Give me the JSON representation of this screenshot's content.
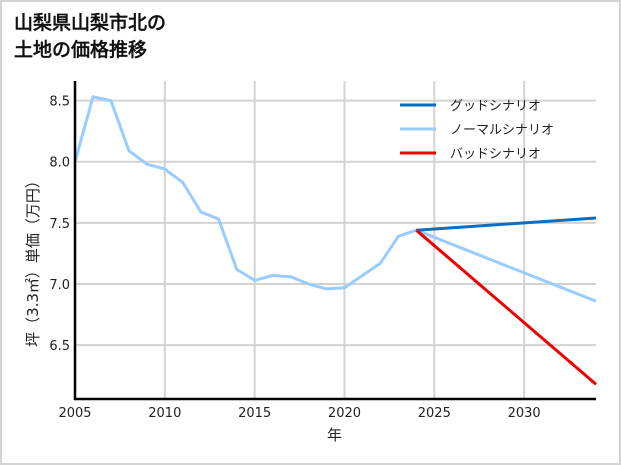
{
  "title": {
    "line1": "山梨県山梨市北の",
    "line2": "土地の価格推移"
  },
  "chart_data": {
    "type": "line",
    "title": "山梨県山梨市北の土地の価格推移",
    "xlabel": "年",
    "ylabel": "坪（3.3㎡）単価（万円）",
    "xlim": [
      2005,
      2034
    ],
    "ylim": [
      6.06,
      8.66
    ],
    "xticks": [
      2005,
      2010,
      2015,
      2020,
      2025,
      2030
    ],
    "yticks": [
      6.5,
      7.0,
      7.5,
      8.0,
      8.5
    ],
    "ytick_labels": [
      "6.5",
      "7.0",
      "7.5",
      "8.0",
      "8.5"
    ],
    "grid": true,
    "legend_position": "upper right",
    "series": [
      {
        "name": "グッドシナリオ",
        "color": "#0a6fc2",
        "x": [
          2024,
          2034
        ],
        "values": [
          7.44,
          7.54
        ]
      },
      {
        "name": "ノーマルシナリオ",
        "color": "#99ccff",
        "x": [
          2005,
          2006,
          2007,
          2008,
          2009,
          2010,
          2011,
          2012,
          2013,
          2014,
          2015,
          2016,
          2017,
          2018,
          2019,
          2020,
          2021,
          2022,
          2023,
          2024,
          2034
        ],
        "values": [
          8.0,
          8.53,
          8.5,
          8.09,
          7.98,
          7.94,
          7.83,
          7.59,
          7.53,
          7.12,
          7.03,
          7.07,
          7.06,
          7.0,
          6.96,
          6.97,
          7.07,
          7.17,
          7.39,
          7.44,
          6.86
        ]
      },
      {
        "name": "バッドシナリオ",
        "color": "#ee0000",
        "x": [
          2024,
          2034
        ],
        "values": [
          7.44,
          6.18
        ]
      }
    ]
  }
}
